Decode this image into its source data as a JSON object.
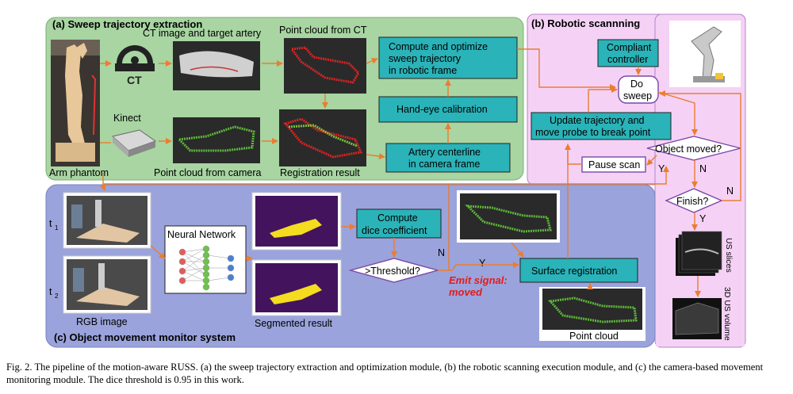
{
  "panels": {
    "a_title": "(a) Sweep trajectory extraction",
    "b_title": "(b) Robotic scannning",
    "c_title": "(c) Object movement monitor system"
  },
  "labels": {
    "arm_phantom": "Arm phantom",
    "kinect": "Kinect",
    "ct_icon": "CT",
    "ct_image": "CT image and target artery",
    "pc_ct": "Point cloud from CT",
    "pc_camera": "Point cloud from camera",
    "registration_result": "Registration result",
    "t1": "t",
    "t1_sub": "1",
    "t2": "t",
    "t2_sub": "2",
    "rgb_image": "RGB image",
    "neural_network": "Neural Network",
    "segmented_result": "Segmented result",
    "point_cloud": "Point cloud",
    "us_slices": "US slices",
    "us_volume": "3D US volume",
    "emit_signal_1": "Emit signal:",
    "emit_signal_2": "moved",
    "yes": "Y",
    "no": "N"
  },
  "boxes": {
    "compute_optimize": [
      "Compute and optimize",
      "sweep trajectory",
      "in robotic frame"
    ],
    "hand_eye": [
      "Hand-eye calibration"
    ],
    "artery_centerline": [
      "Artery centerline",
      "in camera frame"
    ],
    "compliant": [
      "Compliant",
      "controller"
    ],
    "do_sweep": [
      "Do",
      "sweep"
    ],
    "update_trajectory": [
      "Update trajectory and",
      "move probe to break point"
    ],
    "object_moved": [
      "Object moved?"
    ],
    "pause_scan": [
      "Pause scan"
    ],
    "finish": [
      "Finish?"
    ],
    "compute_dice": [
      "Compute",
      "dice coefficient"
    ],
    "threshold": [
      ">Threshold?"
    ],
    "surface_registration": [
      "Surface registration"
    ]
  },
  "colors": {
    "panel_a": "#a8d5a2",
    "panel_b": "#f5d2f5",
    "panel_c": "#9aa3db",
    "teal_box": "#2ab3b8",
    "arrow": "#ec7c30",
    "emit": "#e41b1b"
  },
  "caption": {
    "lead": "Fig. 2.",
    "text": "The pipeline of the motion-aware RUSS. (a) the sweep trajectory extraction and optimization module, (b) the robotic scanning execution module, and (c) the camera-based movement monitoring module. The dice threshold is 0.95 in this work."
  }
}
